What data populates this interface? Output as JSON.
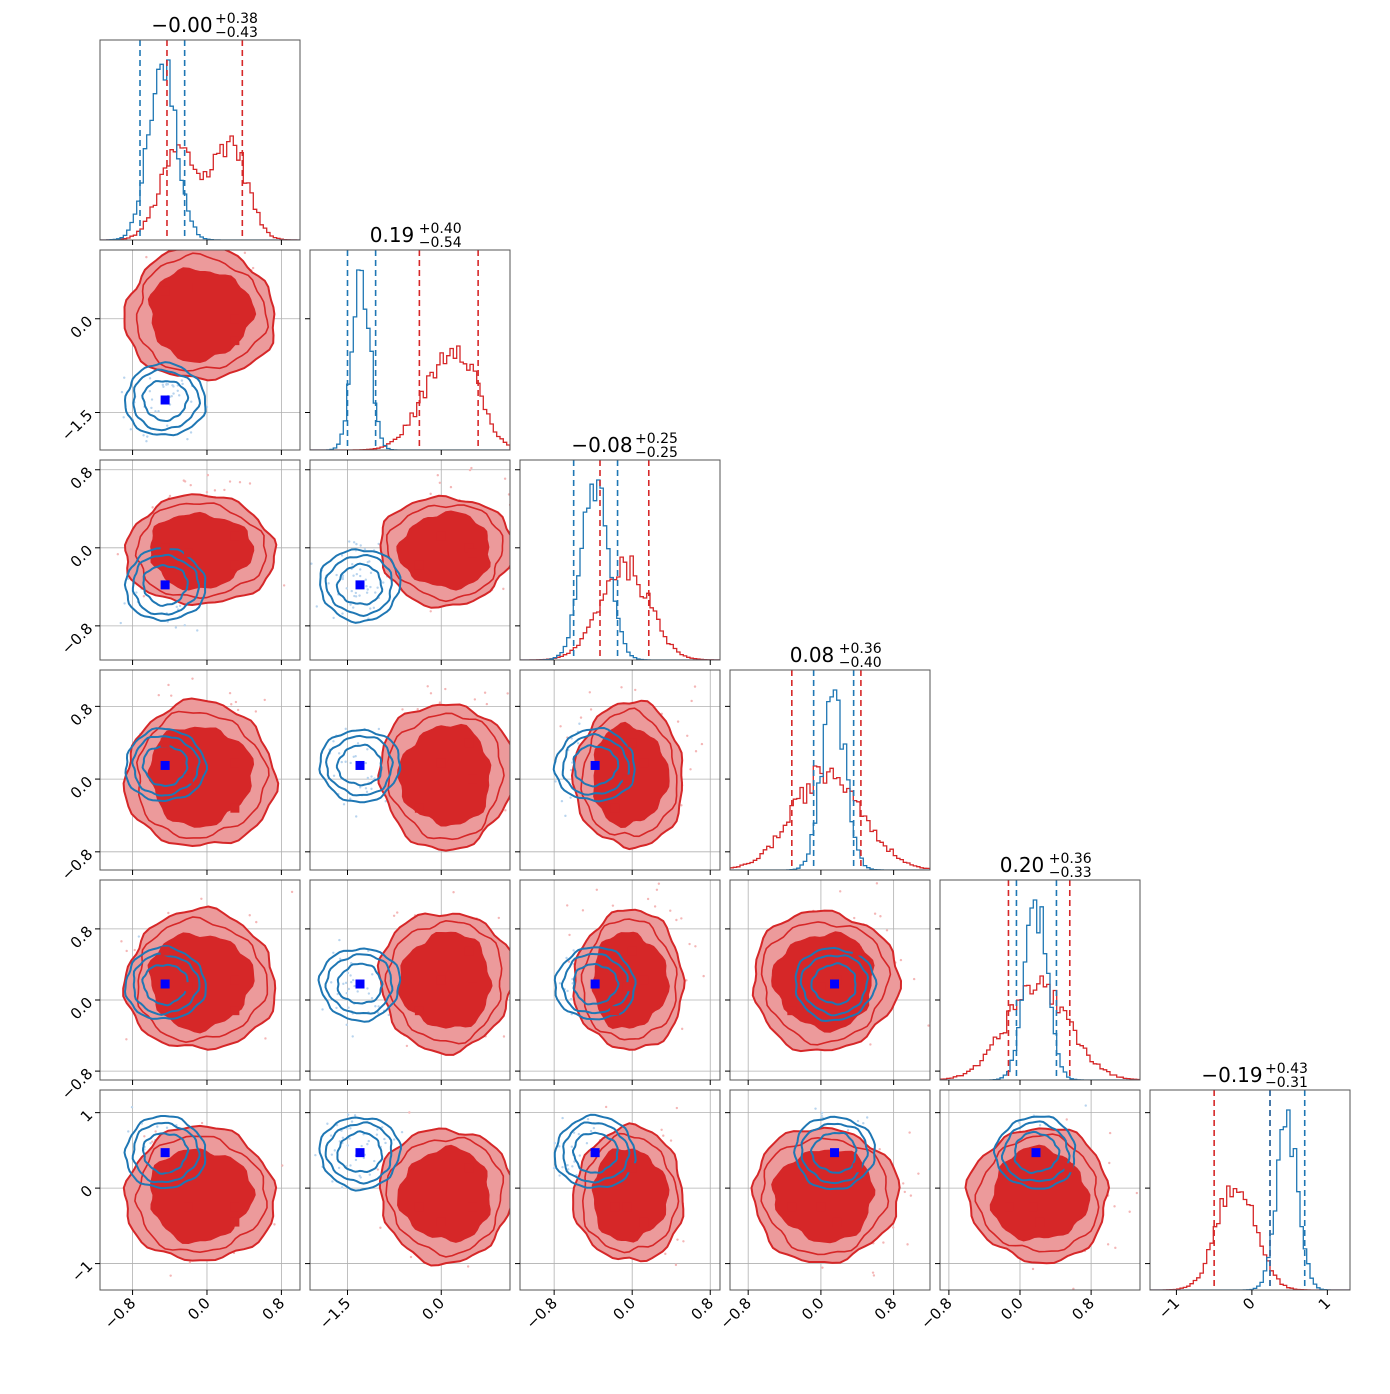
{
  "colors": {
    "red": "#d62728",
    "red_light": "#ec9a9b",
    "blue": "#1f77b4",
    "blue_marker": "#0000ff",
    "grid": "#b0b0b0",
    "frame": "#555555"
  },
  "chart_data": {
    "type": "corner",
    "n_params": 6,
    "ranges": [
      [
        -1.15,
        1.0
      ],
      [
        -2.1,
        1.1
      ],
      [
        -1.15,
        0.9
      ],
      [
        -1.0,
        1.2
      ],
      [
        -0.9,
        1.35
      ],
      [
        -1.35,
        1.3
      ]
    ],
    "ticks": [
      {
        "values": [
          -0.8,
          0.0,
          0.8
        ],
        "labels": [
          "−0.8",
          "0.0",
          "0.8"
        ]
      },
      {
        "values": [
          -1.5,
          0.0
        ],
        "labels": [
          "−1.5",
          "0.0"
        ]
      },
      {
        "values": [
          -0.8,
          0.0,
          0.8
        ],
        "labels": [
          "−0.8",
          "0.0",
          "0.8"
        ]
      },
      {
        "values": [
          -0.8,
          0.0,
          0.8
        ],
        "labels": [
          "−0.8",
          "0.0",
          "0.8"
        ]
      },
      {
        "values": [
          -0.8,
          0.0,
          0.8
        ],
        "labels": [
          "−0.8",
          "0.0",
          "0.8"
        ]
      },
      {
        "values": [
          -1,
          0,
          1
        ],
        "labels": [
          "−1",
          "0",
          "1"
        ]
      }
    ],
    "titles": [
      {
        "main": "−0.00",
        "sup": "+0.38",
        "sub": "−0.43"
      },
      {
        "main": "0.19",
        "sup": "+0.40",
        "sub": "−0.54"
      },
      {
        "main": "−0.08",
        "sup": "+0.25",
        "sub": "−0.25"
      },
      {
        "main": "0.08",
        "sup": "+0.36",
        "sub": "−0.40"
      },
      {
        "main": "0.20",
        "sup": "+0.36",
        "sub": "−0.33"
      },
      {
        "main": "−0.19",
        "sup": "+0.43",
        "sub": "−0.31"
      }
    ],
    "quantiles": {
      "red": [
        [
          -0.43,
          0.38
        ],
        [
          -0.35,
          0.59
        ],
        [
          -0.33,
          0.17
        ],
        [
          -0.32,
          0.44
        ],
        [
          -0.13,
          0.56
        ],
        [
          -0.5,
          0.24
        ]
      ],
      "blue": [
        [
          -0.72,
          -0.24
        ],
        [
          -1.5,
          -1.05
        ],
        [
          -0.6,
          -0.15
        ],
        [
          -0.08,
          0.36
        ],
        [
          -0.04,
          0.41
        ],
        [
          0.24,
          0.7
        ]
      ]
    },
    "blue_truth": [
      -0.45,
      -1.3,
      -0.38,
      0.15,
      0.18,
      0.47
    ],
    "red_modes": [
      [
        -0.45,
        0.45,
        0.0,
        0.4,
        0.55,
        0.27
      ],
      [
        -0.2,
        0.5,
        -0.05,
        0.0,
        0.15,
        -0.25
      ],
      [
        0.3,
        0.0,
        0.12,
        0.18,
        0.22,
        -0.45
      ],
      [
        0.3,
        -0.35,
        -0.18,
        -0.32,
        -0.12,
        -0.25
      ]
    ],
    "histograms": {
      "red": [
        {
          "components": [
            [
              -0.3,
              0.2,
              0.5
            ],
            [
              0.25,
              0.18,
              0.55
            ]
          ]
        },
        {
          "components": [
            [
              -0.1,
              0.35,
              0.6
            ],
            [
              0.35,
              0.3,
              0.85
            ]
          ]
        },
        {
          "components": [
            [
              -0.08,
              0.25,
              1.0
            ]
          ]
        },
        {
          "components": [
            [
              0.08,
              0.38,
              1.0
            ]
          ]
        },
        {
          "components": [
            [
              0.2,
              0.35,
              1.0
            ]
          ]
        },
        {
          "components": [
            [
              -0.2,
              0.25,
              1.0
            ]
          ]
        }
      ],
      "blue": [
        {
          "components": [
            [
              -0.48,
              0.15,
              1.0
            ]
          ]
        },
        {
          "components": [
            [
              -1.28,
              0.14,
              1.0
            ]
          ]
        },
        {
          "components": [
            [
              -0.38,
              0.14,
              1.0
            ]
          ]
        },
        {
          "components": [
            [
              0.14,
              0.13,
              1.0
            ]
          ]
        },
        {
          "components": [
            [
              0.18,
              0.13,
              1.0
            ]
          ]
        },
        {
          "components": [
            [
              0.47,
              0.14,
              1.0
            ]
          ]
        }
      ]
    }
  }
}
